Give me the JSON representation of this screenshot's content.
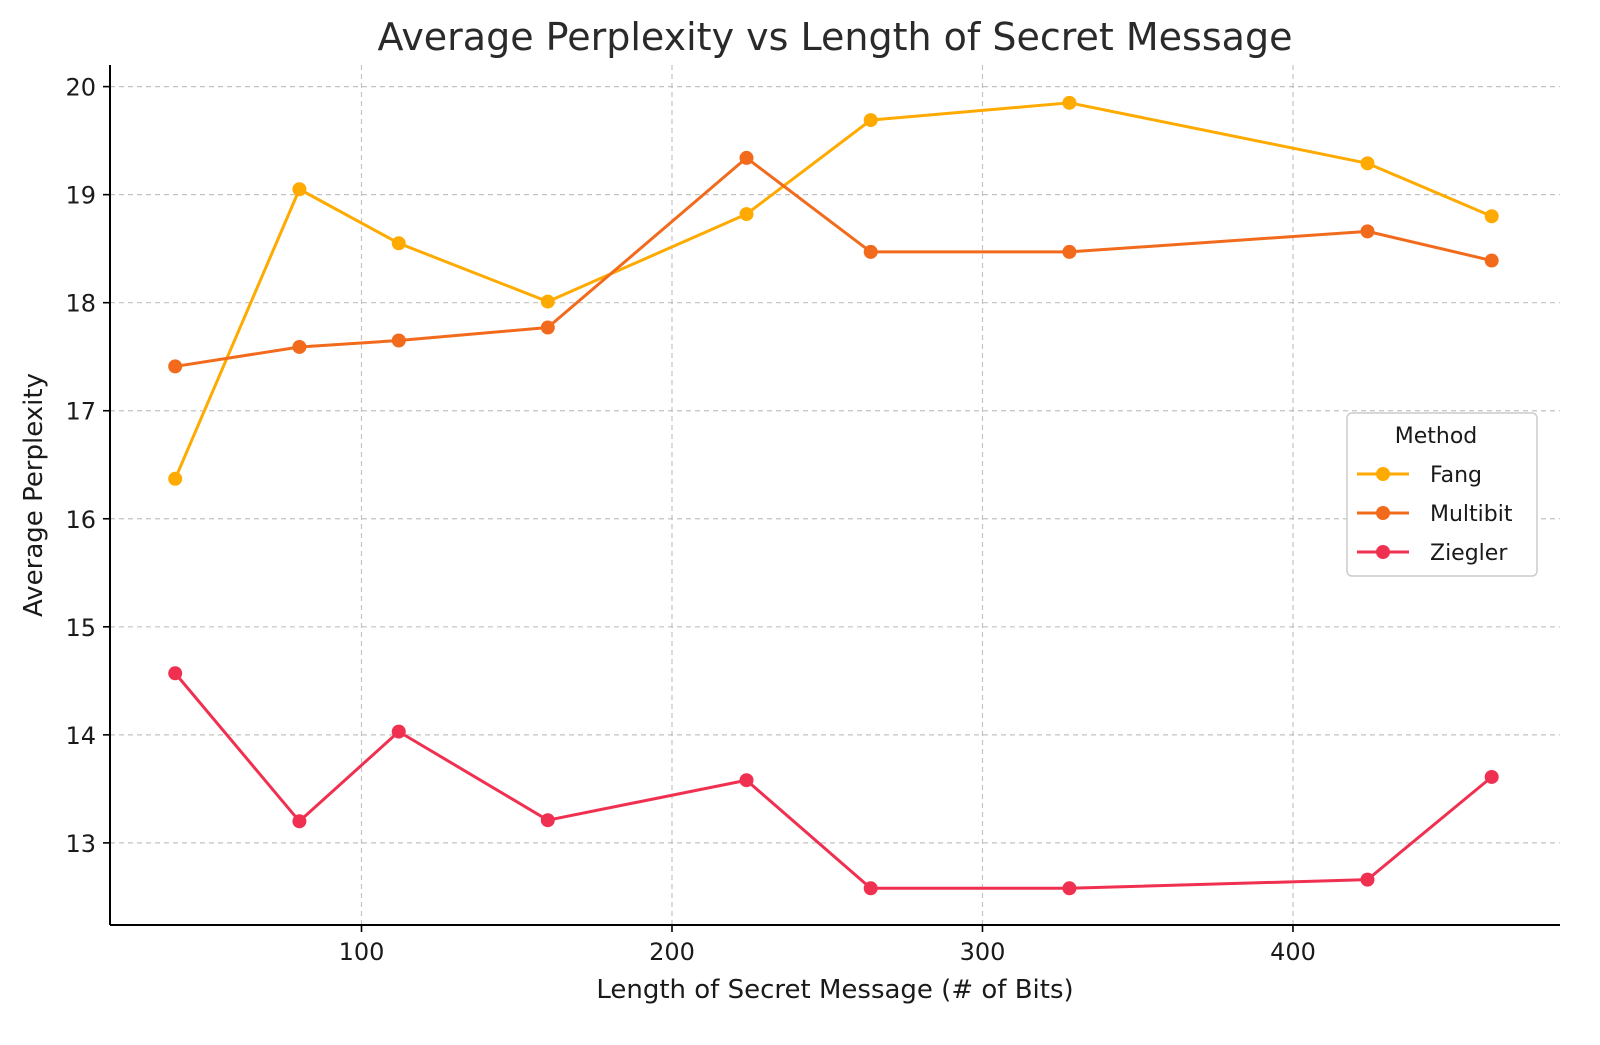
{
  "chart_data": {
    "type": "line",
    "title": "Average Perplexity vs Length of Secret Message",
    "xlabel": "Length of Secret Message (# of Bits)",
    "ylabel": "Average Perplexity",
    "xlim": [
      19,
      486
    ],
    "ylim": [
      12.24,
      20.2
    ],
    "xticks": [
      100,
      200,
      300,
      400
    ],
    "yticks": [
      13,
      14,
      15,
      16,
      17,
      18,
      19,
      20
    ],
    "grid": true,
    "legend": {
      "title": "Method",
      "placement": "center-right"
    },
    "x": [
      40,
      80,
      112,
      160,
      224,
      264,
      328,
      424,
      464
    ],
    "series": [
      {
        "name": "Fang",
        "color": "#FFAA00",
        "values": [
          16.37,
          19.05,
          18.55,
          18.01,
          18.82,
          19.69,
          19.85,
          19.29,
          18.8
        ]
      },
      {
        "name": "Multibit",
        "color": "#F26B1D",
        "values": [
          17.41,
          17.59,
          17.65,
          17.77,
          19.34,
          18.47,
          18.47,
          18.66,
          18.39
        ]
      },
      {
        "name": "Ziegler",
        "color": "#F03050",
        "values": [
          14.57,
          13.2,
          14.03,
          13.21,
          13.58,
          12.58,
          12.58,
          12.66,
          13.61
        ]
      }
    ]
  }
}
